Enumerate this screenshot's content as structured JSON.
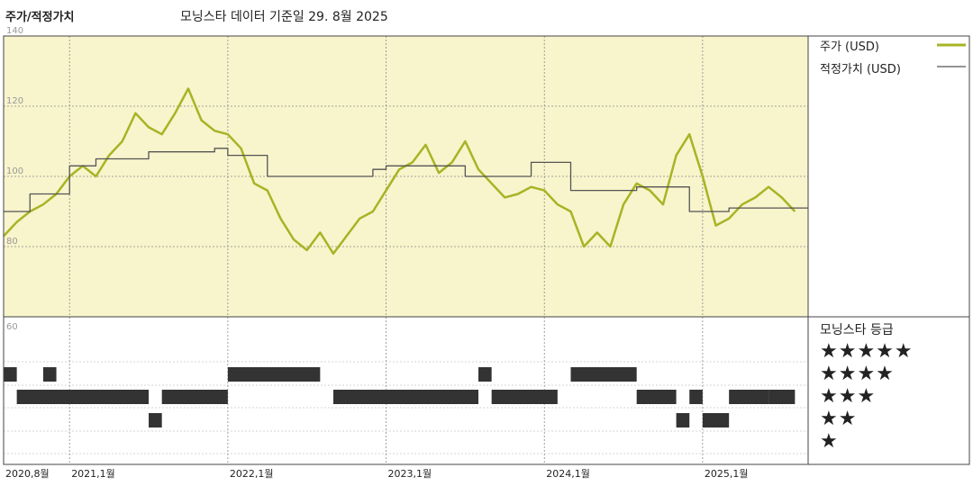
{
  "header": {
    "title": "주가/적정가치",
    "subtitle": "모닝스타 데이터 기준일 29. 8월 2025"
  },
  "legend": {
    "price_label": "주가 (USD)",
    "fair_value_label": "적정가치 (USD)",
    "rating_title": "모닝스타 등급",
    "star_labels": [
      "★★★★★",
      "★★★★",
      "★★★",
      "★★",
      "★"
    ]
  },
  "colors": {
    "price": "#a7b424",
    "fair_value": "#555555",
    "plot_bg": "#f8f4cc",
    "rating_bar": "#333333"
  },
  "chart_data": {
    "type": "line",
    "x_start": "2020-08",
    "x_end": "2025-09",
    "x_ticks": [
      {
        "date": "2020-08",
        "label": "2020,8월"
      },
      {
        "date": "2021-01",
        "label": "2021,1월"
      },
      {
        "date": "2022-01",
        "label": "2022,1월"
      },
      {
        "date": "2023-01",
        "label": "2023,1월"
      },
      {
        "date": "2024-01",
        "label": "2024,1월"
      },
      {
        "date": "2025-01",
        "label": "2025,1월"
      }
    ],
    "y_ticks": [
      140,
      120,
      100,
      80
    ],
    "y_tick_labels": [
      "140",
      "120",
      "100",
      "80"
    ],
    "ylim": [
      60,
      140
    ],
    "lower_label": "60",
    "series": [
      {
        "name": "주가 (USD)",
        "points": [
          [
            "2020-08",
            83
          ],
          [
            "2020-09",
            87
          ],
          [
            "2020-10",
            90
          ],
          [
            "2020-11",
            92
          ],
          [
            "2020-12",
            95
          ],
          [
            "2021-01",
            100
          ],
          [
            "2021-02",
            103
          ],
          [
            "2021-03",
            100
          ],
          [
            "2021-04",
            106
          ],
          [
            "2021-05",
            110
          ],
          [
            "2021-06",
            118
          ],
          [
            "2021-07",
            114
          ],
          [
            "2021-08",
            112
          ],
          [
            "2021-09",
            118
          ],
          [
            "2021-10",
            125
          ],
          [
            "2021-11",
            116
          ],
          [
            "2021-12",
            113
          ],
          [
            "2022-01",
            112
          ],
          [
            "2022-02",
            108
          ],
          [
            "2022-03",
            98
          ],
          [
            "2022-04",
            96
          ],
          [
            "2022-05",
            88
          ],
          [
            "2022-06",
            82
          ],
          [
            "2022-07",
            79
          ],
          [
            "2022-08",
            84
          ],
          [
            "2022-09",
            78
          ],
          [
            "2022-10",
            83
          ],
          [
            "2022-11",
            88
          ],
          [
            "2022-12",
            90
          ],
          [
            "2023-01",
            96
          ],
          [
            "2023-02",
            102
          ],
          [
            "2023-03",
            104
          ],
          [
            "2023-04",
            109
          ],
          [
            "2023-05",
            101
          ],
          [
            "2023-06",
            104
          ],
          [
            "2023-07",
            110
          ],
          [
            "2023-08",
            102
          ],
          [
            "2023-09",
            98
          ],
          [
            "2023-10",
            94
          ],
          [
            "2023-11",
            95
          ],
          [
            "2023-12",
            97
          ],
          [
            "2024-01",
            96
          ],
          [
            "2024-02",
            92
          ],
          [
            "2024-03",
            90
          ],
          [
            "2024-04",
            80
          ],
          [
            "2024-05",
            84
          ],
          [
            "2024-06",
            80
          ],
          [
            "2024-07",
            92
          ],
          [
            "2024-08",
            98
          ],
          [
            "2024-09",
            96
          ],
          [
            "2024-10",
            92
          ],
          [
            "2024-11",
            106
          ],
          [
            "2024-12",
            112
          ],
          [
            "2025-01",
            100
          ],
          [
            "2025-02",
            86
          ],
          [
            "2025-03",
            88
          ],
          [
            "2025-04",
            92
          ],
          [
            "2025-05",
            94
          ],
          [
            "2025-06",
            97
          ],
          [
            "2025-07",
            94
          ],
          [
            "2025-08",
            90
          ]
        ]
      },
      {
        "name": "적정가치 (USD)",
        "points": [
          [
            "2020-08",
            90
          ],
          [
            "2020-10",
            95
          ],
          [
            "2021-01",
            103
          ],
          [
            "2021-03",
            105
          ],
          [
            "2021-07",
            107
          ],
          [
            "2021-12",
            108
          ],
          [
            "2022-01",
            106
          ],
          [
            "2022-04",
            100
          ],
          [
            "2022-12",
            102
          ],
          [
            "2023-01",
            103
          ],
          [
            "2023-07",
            100
          ],
          [
            "2023-12",
            104
          ],
          [
            "2024-03",
            96
          ],
          [
            "2024-08",
            97
          ],
          [
            "2024-12",
            90
          ],
          [
            "2025-03",
            91
          ],
          [
            "2025-08",
            91
          ]
        ]
      }
    ],
    "rating_bars": [
      {
        "stars": 5,
        "segments": []
      },
      {
        "stars": 4,
        "segments": [
          [
            "2020-08",
            "2020-09"
          ],
          [
            "2020-11",
            "2020-12"
          ],
          [
            "2022-01",
            "2022-08"
          ],
          [
            "2023-08",
            "2023-09"
          ],
          [
            "2024-03",
            "2024-08"
          ]
        ]
      },
      {
        "stars": 3,
        "segments": [
          [
            "2020-09",
            "2021-07"
          ],
          [
            "2021-08",
            "2022-01"
          ],
          [
            "2022-09",
            "2023-08"
          ],
          [
            "2023-09",
            "2024-02"
          ],
          [
            "2024-08",
            "2024-11"
          ],
          [
            "2024-12",
            "2025-01"
          ],
          [
            "2025-03",
            "2025-06"
          ],
          [
            "2025-06",
            "2025-08"
          ]
        ]
      },
      {
        "stars": 2,
        "segments": [
          [
            "2021-07",
            "2021-08"
          ],
          [
            "2024-11",
            "2024-12"
          ],
          [
            "2025-01",
            "2025-03"
          ]
        ]
      },
      {
        "stars": 1,
        "segments": []
      }
    ]
  }
}
